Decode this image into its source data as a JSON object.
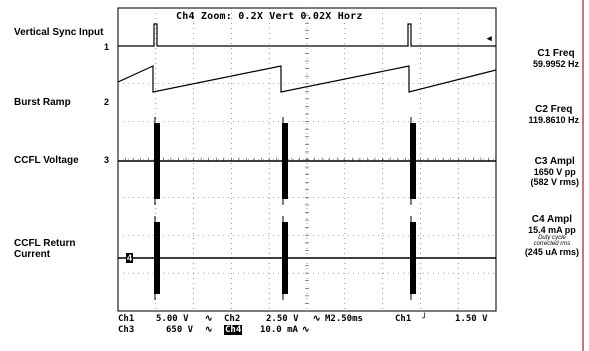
{
  "title": "Ch4 Zoom:    0.2X Vert   0.02X Horz",
  "channel_labels": [
    {
      "name": "Vertical Sync Input",
      "num": "1"
    },
    {
      "name": "Burst Ramp",
      "num": "2"
    },
    {
      "name": "CCFL Voltage",
      "num": "3"
    },
    {
      "name": "CCFL Return Current",
      "num": "4"
    }
  ],
  "measurements": {
    "c1": {
      "title": "C1 Freq",
      "value": "59.9952 Hz"
    },
    "c2": {
      "title": "C2 Freq",
      "value": "119.8610 Hz"
    },
    "c3": {
      "title": "C3 Ampl",
      "value": "1650 V pp",
      "rms": "(582 V rms)"
    },
    "c4": {
      "title": "C4 Ampl",
      "value": "15.4 mA pp",
      "note": "Duty cycle corrected rms",
      "rms": "(245 uA rms)"
    }
  },
  "status": {
    "ch1": "Ch1",
    "ch1_scale": "5.00 V",
    "ch2": "Ch2",
    "ch2_scale": "2.50 V",
    "timebase": "M2.50ms",
    "trig_src": "Ch1",
    "trig_level": "1.50 V",
    "ch3": "Ch3",
    "ch3_scale": "650 V",
    "ch4": "Ch4",
    "ch4_scale": "10.0 mA"
  },
  "colors": {
    "trace": "#000000",
    "grid": "#555555",
    "rule": "#c8787a"
  }
}
